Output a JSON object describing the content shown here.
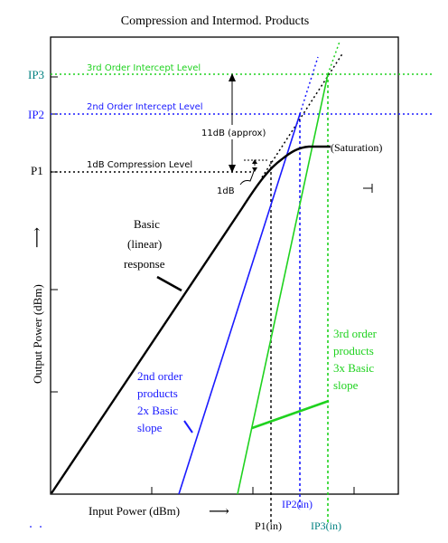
{
  "title": "Compression and Intermod. Products",
  "x_axis_label": "Input Power (dBm)",
  "x_arrow": "⟶",
  "y_axis_label": "Output Power (dBm)",
  "y_arrow": "⟶",
  "levels": {
    "ip3": {
      "tick": "IP3",
      "label": "3rd Order Intercept Level",
      "color": "#1fd21f"
    },
    "ip2": {
      "tick": "IP2",
      "label": "2nd Order Intercept Level",
      "color": "#1a1aff"
    },
    "p1": {
      "tick": "P1",
      "label": "1dB Compression Level",
      "color": "#000000"
    }
  },
  "x_markers": {
    "p1_in": "P1(in)",
    "ip2_in": "IP2(in)",
    "ip3_in": "IP3(in)"
  },
  "annotations": {
    "gap": "11dB (approx)",
    "one_db": "1dB",
    "saturation": "(Saturation)",
    "basic": [
      "Basic",
      "(linear)",
      "response"
    ],
    "second_order": [
      "2nd order",
      "products",
      "2x Basic",
      "slope"
    ],
    "third_order": [
      "3rd order",
      "products",
      "3x Basic",
      "slope"
    ]
  },
  "colors": {
    "basic": "#000000",
    "second_order": "#1a1aff",
    "third_order": "#1fd21f",
    "ip3_text": "#008080",
    "ip2_text": "#1a1aff"
  }
}
